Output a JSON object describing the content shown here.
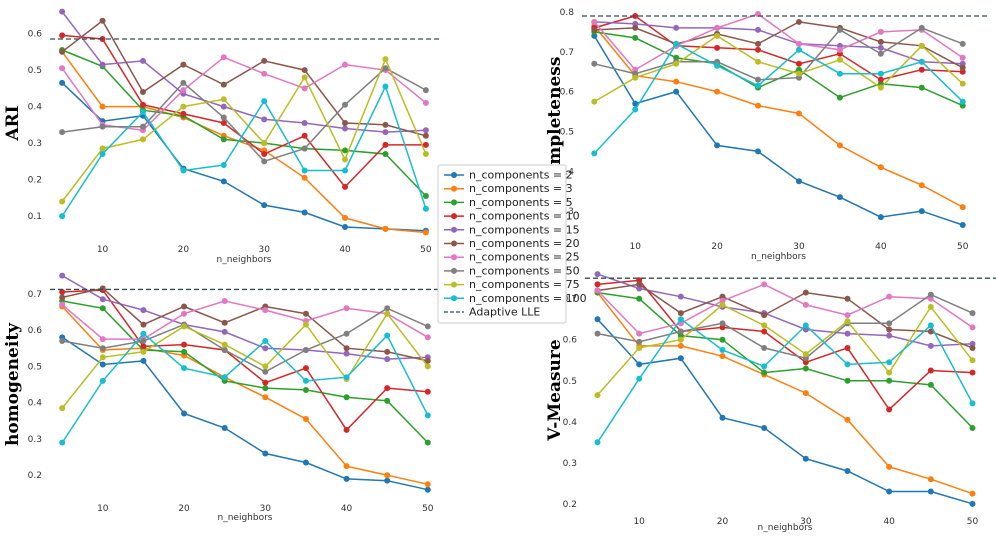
{
  "legend": {
    "entries": [
      "n_components = 2",
      "n_components = 3",
      "n_components = 5",
      "n_components = 10",
      "n_components = 15",
      "n_components = 20",
      "n_components = 25",
      "n_components = 50",
      "n_components = 75",
      "n_components = 100",
      "Adaptive LLE"
    ]
  },
  "chart_data": [
    {
      "type": "line",
      "title": "",
      "xlabel": "n_neighbors",
      "ylabel": "ARI",
      "x": [
        5,
        10,
        15,
        20,
        25,
        30,
        35,
        40,
        45,
        50
      ],
      "xticks": [
        10,
        20,
        30,
        40,
        50
      ],
      "yticks": [
        0.1,
        0.2,
        0.3,
        0.4,
        0.5,
        0.6
      ],
      "xlim": [
        3.5,
        51.5
      ],
      "ylim": [
        0.04,
        0.67
      ],
      "grid": false,
      "reference_line": {
        "name": "Adaptive LLE",
        "value": 0.585
      },
      "series": [
        {
          "name": "n_components = 2",
          "color": "#1f77b4",
          "values": [
            0.465,
            0.36,
            0.375,
            0.23,
            0.195,
            0.13,
            0.11,
            0.07,
            0.065,
            0.06
          ]
        },
        {
          "name": "n_components = 3",
          "color": "#ff7f0e",
          "values": [
            0.55,
            0.4,
            0.4,
            0.37,
            0.32,
            0.28,
            0.205,
            0.095,
            0.065,
            0.055
          ]
        },
        {
          "name": "n_components = 5",
          "color": "#2ca02c",
          "values": [
            0.555,
            0.51,
            0.39,
            0.375,
            0.31,
            0.3,
            0.285,
            0.28,
            0.27,
            0.155
          ]
        },
        {
          "name": "n_components = 10",
          "color": "#d62728",
          "values": [
            0.595,
            0.585,
            0.405,
            0.38,
            0.355,
            0.27,
            0.32,
            0.18,
            0.295,
            0.295
          ]
        },
        {
          "name": "n_components = 15",
          "color": "#9467bd",
          "values": [
            0.66,
            0.515,
            0.525,
            0.435,
            0.4,
            0.365,
            0.355,
            0.34,
            0.33,
            0.335
          ]
        },
        {
          "name": "n_components = 20",
          "color": "#8c564b",
          "values": [
            0.55,
            0.635,
            0.44,
            0.515,
            0.46,
            0.525,
            0.5,
            0.355,
            0.35,
            0.32
          ]
        },
        {
          "name": "n_components = 25",
          "color": "#e377c2",
          "values": [
            0.505,
            0.35,
            0.335,
            0.445,
            0.535,
            0.49,
            0.45,
            0.515,
            0.5,
            0.41
          ]
        },
        {
          "name": "n_components = 50",
          "color": "#7f7f7f",
          "values": [
            0.33,
            0.345,
            0.345,
            0.465,
            0.37,
            0.25,
            0.285,
            0.405,
            0.505,
            0.445
          ]
        },
        {
          "name": "n_components = 75",
          "color": "#bcbd22",
          "values": [
            0.14,
            0.285,
            0.31,
            0.4,
            0.42,
            0.3,
            0.48,
            0.255,
            0.53,
            0.27
          ]
        },
        {
          "name": "n_components = 100",
          "color": "#17becf",
          "values": [
            0.1,
            0.27,
            0.385,
            0.225,
            0.24,
            0.415,
            0.225,
            0.225,
            0.455,
            0.12
          ]
        }
      ]
    },
    {
      "type": "line",
      "title": "",
      "xlabel": "n_neighbors",
      "ylabel": "completeness",
      "x": [
        5,
        10,
        15,
        20,
        25,
        30,
        35,
        40,
        45,
        50
      ],
      "xticks": [
        10,
        20,
        30,
        40,
        50
      ],
      "yticks": [
        0.3,
        0.4,
        0.5,
        0.6,
        0.7,
        0.8
      ],
      "xlim": [
        3.5,
        51.5
      ],
      "ylim": [
        0.24,
        0.81
      ],
      "grid": false,
      "reference_line": {
        "name": "Adaptive LLE",
        "value": 0.79
      },
      "series": [
        {
          "name": "n_components = 2",
          "color": "#1f77b4",
          "values": [
            0.74,
            0.57,
            0.6,
            0.465,
            0.45,
            0.375,
            0.335,
            0.285,
            0.3,
            0.265
          ]
        },
        {
          "name": "n_components = 3",
          "color": "#ff7f0e",
          "values": [
            0.765,
            0.64,
            0.625,
            0.6,
            0.565,
            0.545,
            0.465,
            0.41,
            0.365,
            0.31
          ]
        },
        {
          "name": "n_components = 5",
          "color": "#2ca02c",
          "values": [
            0.75,
            0.735,
            0.685,
            0.67,
            0.61,
            0.655,
            0.585,
            0.62,
            0.61,
            0.565
          ]
        },
        {
          "name": "n_components = 10",
          "color": "#d62728",
          "values": [
            0.76,
            0.79,
            0.715,
            0.71,
            0.705,
            0.67,
            0.695,
            0.63,
            0.655,
            0.65
          ]
        },
        {
          "name": "n_components = 15",
          "color": "#9467bd",
          "values": [
            0.775,
            0.77,
            0.76,
            0.76,
            0.755,
            0.72,
            0.715,
            0.71,
            0.675,
            0.67
          ]
        },
        {
          "name": "n_components = 20",
          "color": "#8c564b",
          "values": [
            0.755,
            0.76,
            0.72,
            0.745,
            0.72,
            0.775,
            0.76,
            0.725,
            0.715,
            0.66
          ]
        },
        {
          "name": "n_components = 25",
          "color": "#e377c2",
          "values": [
            0.775,
            0.655,
            0.715,
            0.76,
            0.795,
            0.72,
            0.705,
            0.75,
            0.755,
            0.685
          ]
        },
        {
          "name": "n_components = 50",
          "color": "#7f7f7f",
          "values": [
            0.67,
            0.645,
            0.675,
            0.675,
            0.63,
            0.635,
            0.755,
            0.695,
            0.76,
            0.72
          ]
        },
        {
          "name": "n_components = 75",
          "color": "#bcbd22",
          "values": [
            0.575,
            0.635,
            0.67,
            0.74,
            0.675,
            0.645,
            0.68,
            0.61,
            0.715,
            0.62
          ]
        },
        {
          "name": "n_components = 100",
          "color": "#17becf",
          "values": [
            0.445,
            0.555,
            0.72,
            0.665,
            0.615,
            0.705,
            0.645,
            0.645,
            0.675,
            0.575
          ]
        }
      ]
    },
    {
      "type": "line",
      "title": "",
      "xlabel": "n_neighbors",
      "ylabel": "homogeneity",
      "x": [
        5,
        10,
        15,
        20,
        25,
        30,
        35,
        40,
        45,
        50
      ],
      "xticks": [
        10,
        20,
        30,
        40,
        50
      ],
      "yticks": [
        0.2,
        0.3,
        0.4,
        0.5,
        0.6,
        0.7
      ],
      "xlim": [
        3.5,
        51.5
      ],
      "ylim": [
        0.14,
        0.76
      ],
      "grid": false,
      "reference_line": {
        "name": "Adaptive LLE",
        "value": 0.712
      },
      "series": [
        {
          "name": "n_components = 2",
          "color": "#1f77b4",
          "values": [
            0.58,
            0.505,
            0.515,
            0.37,
            0.33,
            0.26,
            0.235,
            0.19,
            0.185,
            0.16
          ]
        },
        {
          "name": "n_components = 3",
          "color": "#ff7f0e",
          "values": [
            0.665,
            0.545,
            0.55,
            0.53,
            0.47,
            0.415,
            0.355,
            0.225,
            0.2,
            0.175
          ]
        },
        {
          "name": "n_components = 5",
          "color": "#2ca02c",
          "values": [
            0.68,
            0.66,
            0.545,
            0.54,
            0.46,
            0.44,
            0.435,
            0.415,
            0.405,
            0.29
          ]
        },
        {
          "name": "n_components = 10",
          "color": "#d62728",
          "values": [
            0.705,
            0.71,
            0.555,
            0.56,
            0.545,
            0.455,
            0.495,
            0.325,
            0.44,
            0.43
          ]
        },
        {
          "name": "n_components = 15",
          "color": "#9467bd",
          "values": [
            0.75,
            0.685,
            0.655,
            0.615,
            0.595,
            0.55,
            0.545,
            0.535,
            0.52,
            0.525
          ]
        },
        {
          "name": "n_components = 20",
          "color": "#8c564b",
          "values": [
            0.69,
            0.715,
            0.615,
            0.665,
            0.62,
            0.665,
            0.645,
            0.55,
            0.54,
            0.515
          ]
        },
        {
          "name": "n_components = 25",
          "color": "#e377c2",
          "values": [
            0.67,
            0.575,
            0.575,
            0.645,
            0.68,
            0.655,
            0.625,
            0.66,
            0.645,
            0.58
          ]
        },
        {
          "name": "n_components = 50",
          "color": "#7f7f7f",
          "values": [
            0.57,
            0.55,
            0.57,
            0.615,
            0.545,
            0.485,
            0.545,
            0.59,
            0.66,
            0.61
          ]
        },
        {
          "name": "n_components = 75",
          "color": "#bcbd22",
          "values": [
            0.385,
            0.525,
            0.54,
            0.61,
            0.56,
            0.5,
            0.615,
            0.465,
            0.645,
            0.5
          ]
        },
        {
          "name": "n_components = 100",
          "color": "#17becf",
          "values": [
            0.29,
            0.46,
            0.59,
            0.495,
            0.47,
            0.57,
            0.46,
            0.47,
            0.585,
            0.365
          ]
        }
      ]
    },
    {
      "type": "line",
      "title": "",
      "xlabel": "n_neighbors",
      "ylabel": "V-Measure",
      "x": [
        5,
        10,
        15,
        20,
        25,
        30,
        35,
        40,
        45,
        50
      ],
      "xticks": [
        10,
        20,
        30,
        40,
        50
      ],
      "yticks": [
        0.2,
        0.3,
        0.4,
        0.5,
        0.6,
        0.7
      ],
      "xlim": [
        3.5,
        51.5
      ],
      "ylim": [
        0.185,
        0.77
      ],
      "grid": false,
      "reference_line": {
        "name": "Adaptive LLE",
        "value": 0.75
      },
      "series": [
        {
          "name": "n_components = 2",
          "color": "#1f77b4",
          "values": [
            0.65,
            0.54,
            0.555,
            0.41,
            0.385,
            0.31,
            0.28,
            0.23,
            0.23,
            0.2
          ]
        },
        {
          "name": "n_components = 3",
          "color": "#ff7f0e",
          "values": [
            0.715,
            0.585,
            0.585,
            0.56,
            0.515,
            0.47,
            0.405,
            0.29,
            0.26,
            0.225
          ]
        },
        {
          "name": "n_components = 5",
          "color": "#2ca02c",
          "values": [
            0.715,
            0.7,
            0.61,
            0.6,
            0.52,
            0.53,
            0.5,
            0.5,
            0.49,
            0.385
          ]
        },
        {
          "name": "n_components = 10",
          "color": "#d62728",
          "values": [
            0.735,
            0.745,
            0.62,
            0.63,
            0.62,
            0.545,
            0.58,
            0.43,
            0.525,
            0.52
          ]
        },
        {
          "name": "n_components = 15",
          "color": "#9467bd",
          "values": [
            0.76,
            0.725,
            0.705,
            0.68,
            0.665,
            0.625,
            0.615,
            0.61,
            0.585,
            0.59
          ]
        },
        {
          "name": "n_components = 20",
          "color": "#8c564b",
          "values": [
            0.72,
            0.735,
            0.665,
            0.705,
            0.66,
            0.715,
            0.7,
            0.625,
            0.62,
            0.58
          ]
        },
        {
          "name": "n_components = 25",
          "color": "#e377c2",
          "values": [
            0.72,
            0.615,
            0.64,
            0.695,
            0.735,
            0.685,
            0.66,
            0.705,
            0.7,
            0.63
          ]
        },
        {
          "name": "n_components = 50",
          "color": "#7f7f7f",
          "values": [
            0.615,
            0.595,
            0.62,
            0.64,
            0.58,
            0.555,
            0.64,
            0.64,
            0.71,
            0.665
          ]
        },
        {
          "name": "n_components = 75",
          "color": "#bcbd22",
          "values": [
            0.465,
            0.58,
            0.6,
            0.685,
            0.635,
            0.565,
            0.645,
            0.52,
            0.68,
            0.55
          ]
        },
        {
          "name": "n_components = 100",
          "color": "#17becf",
          "values": [
            0.35,
            0.505,
            0.65,
            0.575,
            0.535,
            0.635,
            0.54,
            0.545,
            0.635,
            0.445
          ]
        }
      ]
    }
  ]
}
